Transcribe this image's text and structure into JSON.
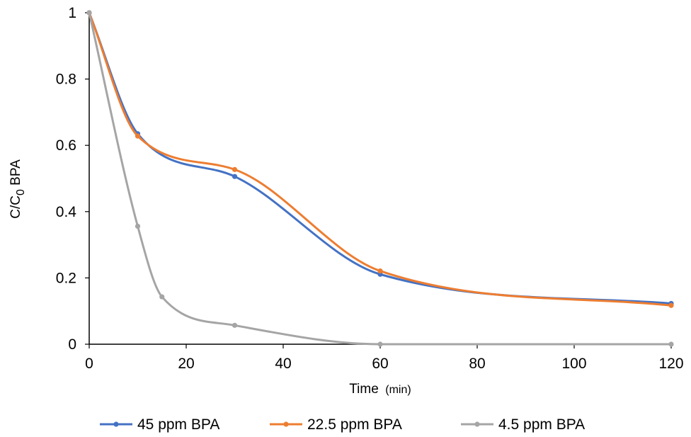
{
  "chart_data": {
    "type": "line",
    "title": "",
    "xlabel": "Time",
    "xlabel_unit": "(min)",
    "ylabel_main": "C/C",
    "ylabel_sub": "0",
    "ylabel_tail": " BPA",
    "xlim": [
      0,
      120
    ],
    "ylim": [
      0,
      1
    ],
    "xticks": [
      0,
      20,
      40,
      60,
      80,
      100,
      120
    ],
    "xtick_labels": [
      "0",
      "20",
      "40",
      "60",
      "80",
      "100",
      "120"
    ],
    "yticks": [
      0,
      0.2,
      0.4,
      0.6,
      0.8,
      1
    ],
    "ytick_labels": [
      "0",
      "0.2",
      "0.4",
      "0.6",
      "0.8",
      "1"
    ],
    "grid": false,
    "smooth": true,
    "legend_position": "bottom",
    "series": [
      {
        "name": "45 ppm BPA",
        "color": "#4472C4",
        "x": [
          0,
          10,
          30,
          60,
          120
        ],
        "y": [
          1.0,
          0.635,
          0.506,
          0.211,
          0.123
        ]
      },
      {
        "name": "22.5 ppm BPA",
        "color": "#ED7D31",
        "x": [
          0,
          10,
          30,
          60,
          120
        ],
        "y": [
          1.0,
          0.628,
          0.527,
          0.221,
          0.117
        ]
      },
      {
        "name": "4.5 ppm BPA",
        "color": "#A5A5A5",
        "x": [
          0,
          10,
          15,
          30,
          60,
          120
        ],
        "y": [
          1.0,
          0.356,
          0.143,
          0.057,
          0.0,
          0.0
        ]
      }
    ]
  }
}
